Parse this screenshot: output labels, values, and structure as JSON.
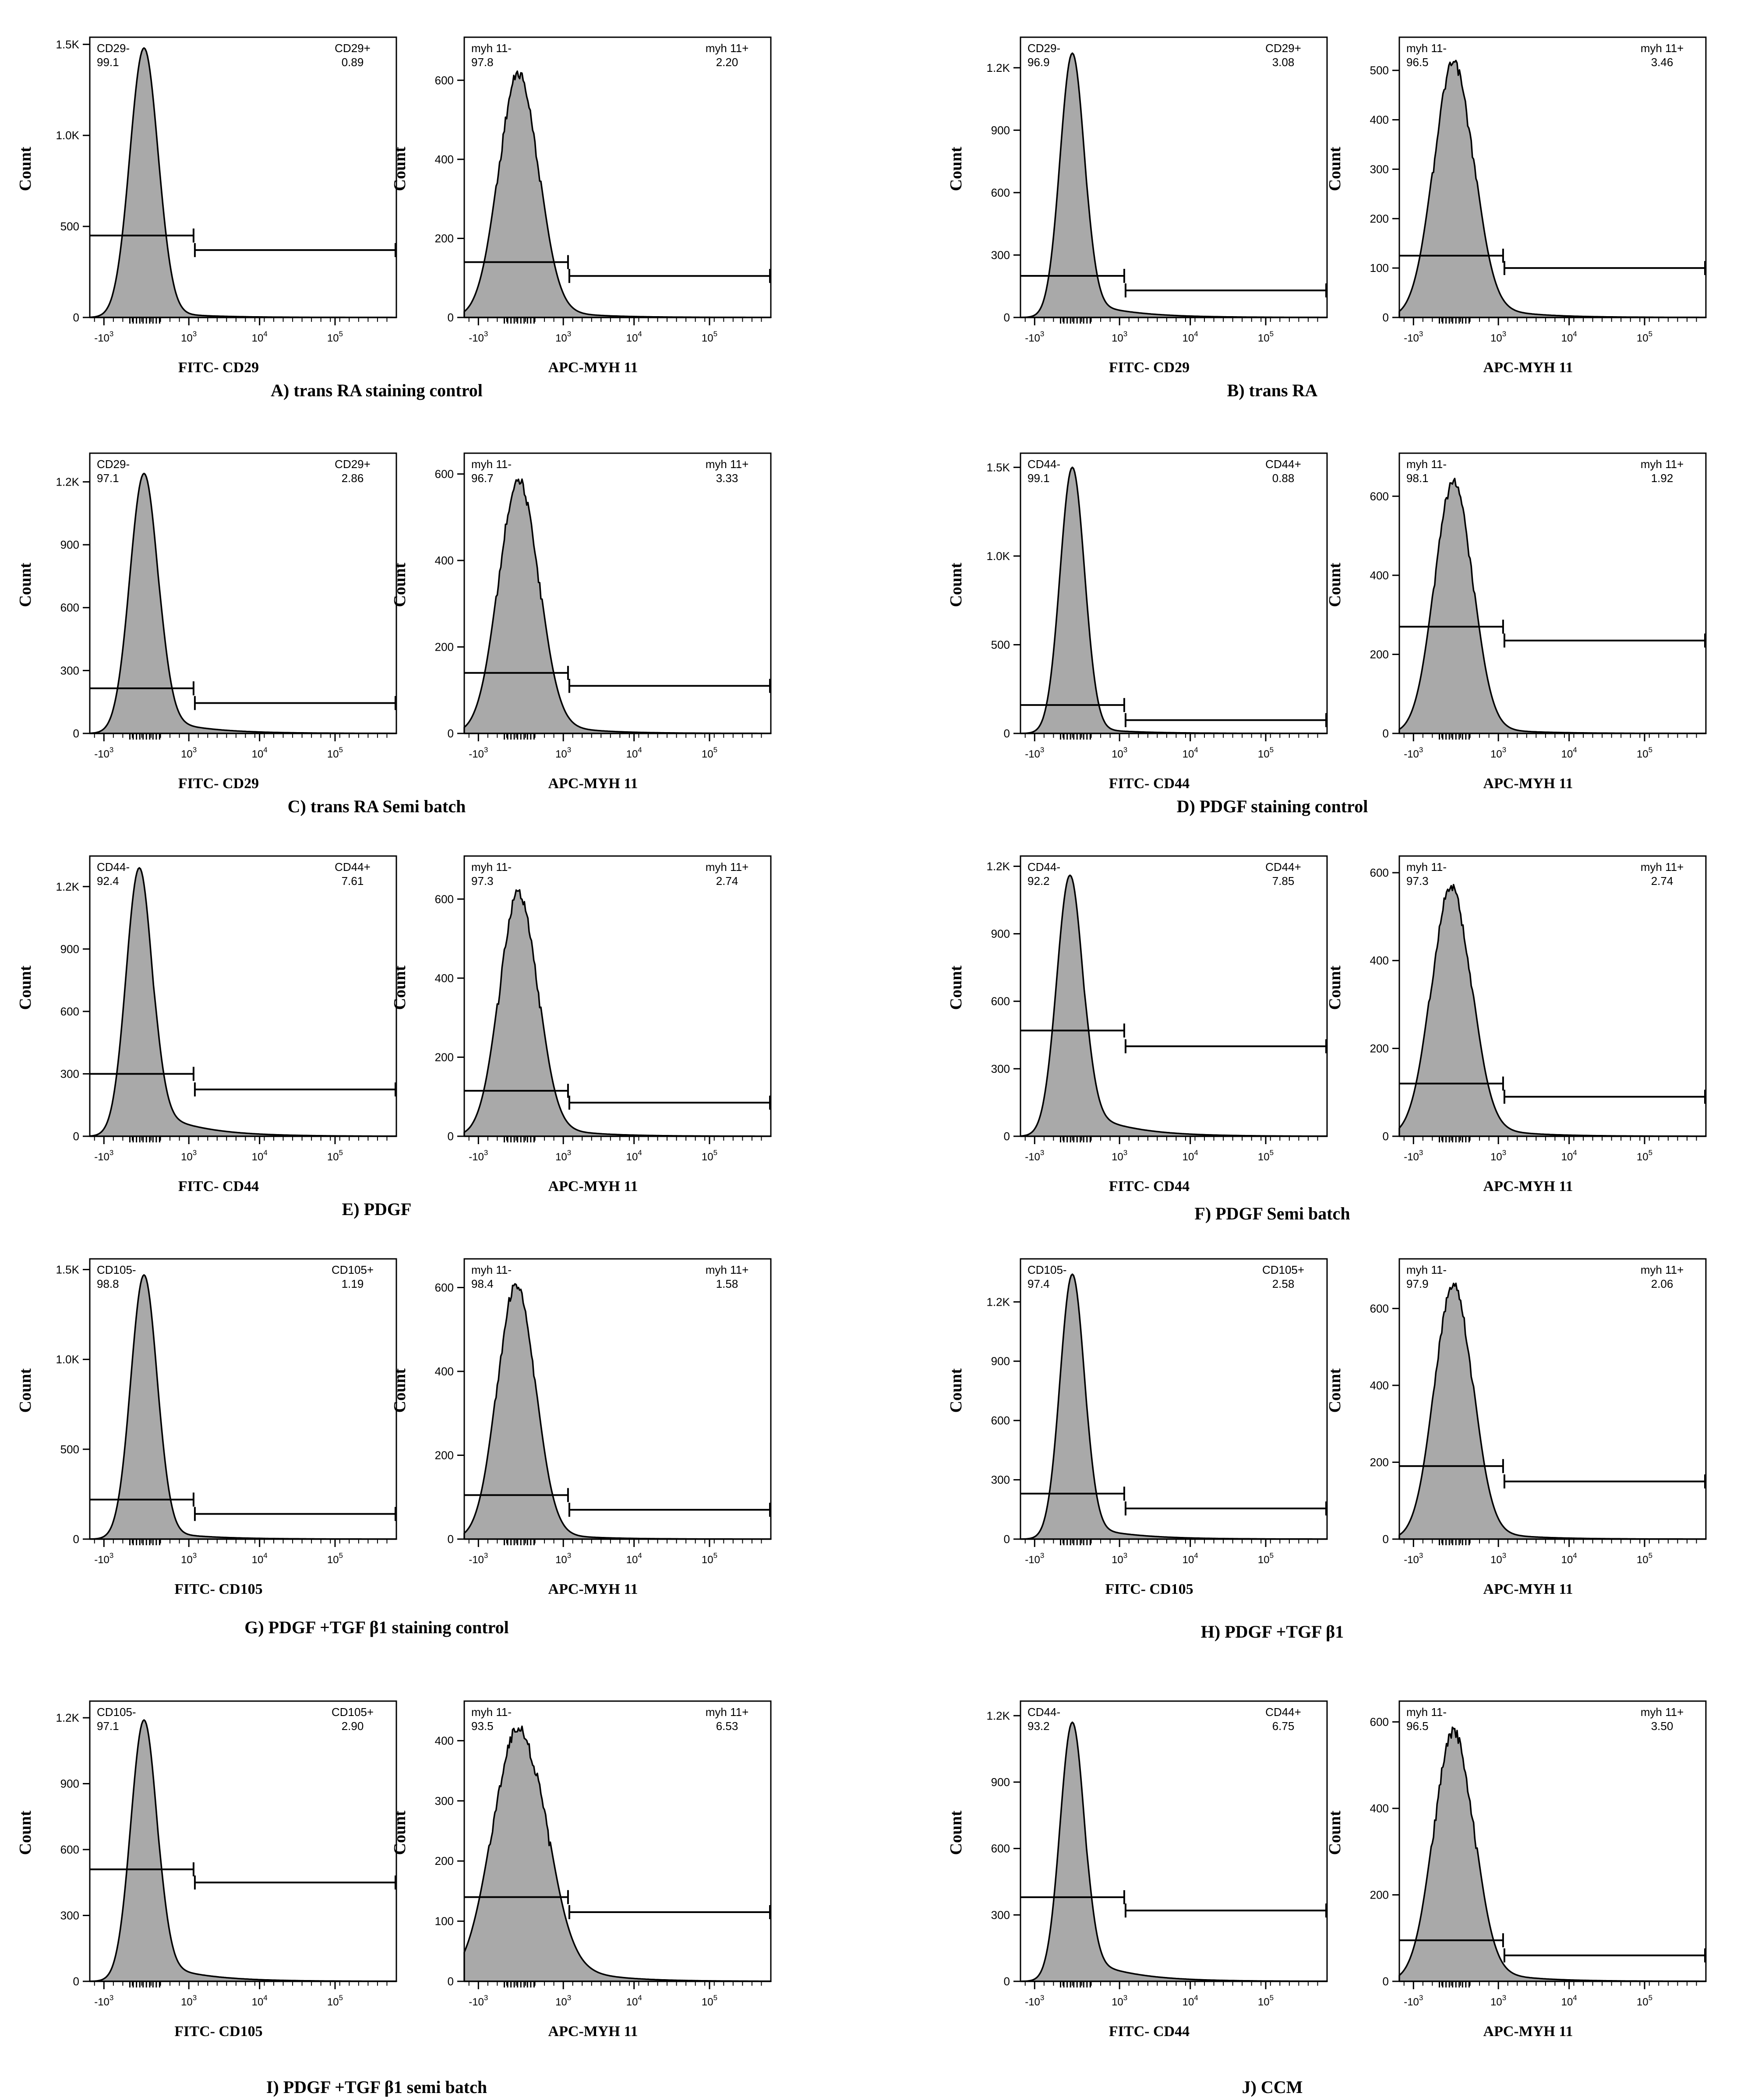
{
  "figure": {
    "panels": [
      {
        "id": "A",
        "caption": "A) trans RA staining control"
      },
      {
        "id": "B",
        "caption": "B) trans RA"
      },
      {
        "id": "C",
        "caption": "C) trans RA Semi batch"
      },
      {
        "id": "D",
        "caption": "D) PDGF staining control"
      },
      {
        "id": "E",
        "caption": "E) PDGF"
      },
      {
        "id": "F",
        "caption": "F) PDGF Semi batch"
      },
      {
        "id": "G",
        "caption": "G) PDGF +TGF β1 staining control"
      },
      {
        "id": "H",
        "caption": "H) PDGF +TGF β1"
      },
      {
        "id": "I",
        "caption": "I) PDGF +TGF β1 semi batch"
      },
      {
        "id": "J",
        "caption": "J) CCM"
      }
    ]
  },
  "chart_data": [
    {
      "type": "area",
      "panel": "A",
      "marker": "CD29",
      "xlabel": "FITC- CD29",
      "ylabel": "Count",
      "yticks": [
        "0",
        "500",
        "1.0K",
        "1.5K"
      ],
      "ytick_values": [
        0,
        500,
        1000,
        1500
      ],
      "ymax": 1520,
      "peak": 1480,
      "neg_label": "CD29-",
      "neg_value": "99.1",
      "pos_label": "CD29+",
      "pos_value": "0.89",
      "gate_y": [
        450,
        370
      ],
      "sigma": 0.3,
      "tail": 0.02,
      "mode": -0.05
    },
    {
      "type": "area",
      "panel": "A",
      "marker": "MYH 11",
      "xlabel": "APC-MYH 11",
      "ylabel": "Count",
      "yticks": [
        "0",
        "200",
        "400",
        "600"
      ],
      "ytick_values": [
        0,
        200,
        400,
        600
      ],
      "ymax": 700,
      "peak": 630,
      "neg_label": "myh 11-",
      "neg_value": "97.8",
      "pos_label": "myh 11+",
      "pos_value": "2.20",
      "gate_y": [
        140,
        105
      ],
      "sigma": 0.42,
      "tail": 0.04,
      "mode": -0.05,
      "noise": true
    },
    {
      "type": "area",
      "panel": "B",
      "marker": "CD29",
      "xlabel": "FITC- CD29",
      "ylabel": "Count",
      "yticks": [
        "0",
        "300",
        "600",
        "900",
        "1.2K"
      ],
      "ytick_values": [
        0,
        300,
        600,
        900,
        1200
      ],
      "ymax": 1330,
      "peak": 1270,
      "neg_label": "CD29-",
      "neg_value": "96.9",
      "pos_label": "CD29+",
      "pos_value": "3.08",
      "gate_y": [
        200,
        130
      ],
      "sigma": 0.26,
      "tail": 0.06,
      "mode": -0.1
    },
    {
      "type": "area",
      "panel": "B",
      "marker": "MYH 11",
      "xlabel": "APC-MYH 11",
      "ylabel": "Count",
      "yticks": [
        "0",
        "100",
        "200",
        "300",
        "400",
        "500"
      ],
      "ytick_values": [
        0,
        100,
        200,
        300,
        400,
        500
      ],
      "ymax": 560,
      "peak": 525,
      "neg_label": "myh 11-",
      "neg_value": "96.5",
      "pos_label": "myh 11+",
      "pos_value": "3.46",
      "gate_y": [
        125,
        100
      ],
      "sigma": 0.42,
      "tail": 0.06,
      "mode": -0.05,
      "noise": true
    },
    {
      "type": "area",
      "panel": "C",
      "marker": "CD29",
      "xlabel": "FITC- CD29",
      "ylabel": "Count",
      "yticks": [
        "0",
        "300",
        "600",
        "900",
        "1.2K"
      ],
      "ytick_values": [
        0,
        300,
        600,
        900,
        1200
      ],
      "ymax": 1320,
      "peak": 1240,
      "neg_label": "CD29-",
      "neg_value": "97.1",
      "pos_label": "CD29+",
      "pos_value": "2.86",
      "gate_y": [
        215,
        145
      ],
      "sigma": 0.3,
      "tail": 0.06,
      "mode": -0.05
    },
    {
      "type": "area",
      "panel": "C",
      "marker": "MYH 11",
      "xlabel": "APC-MYH 11",
      "ylabel": "Count",
      "yticks": [
        "0",
        "200",
        "400",
        "600"
      ],
      "ytick_values": [
        0,
        200,
        400,
        600
      ],
      "ymax": 640,
      "peak": 600,
      "neg_label": "myh 11-",
      "neg_value": "96.7",
      "pos_label": "myh 11+",
      "pos_value": "3.33",
      "gate_y": [
        140,
        110
      ],
      "sigma": 0.42,
      "tail": 0.05,
      "mode": -0.05,
      "noise": true
    },
    {
      "type": "area",
      "panel": "D",
      "marker": "CD44",
      "xlabel": "FITC- CD44",
      "ylabel": "Count",
      "yticks": [
        "0",
        "500",
        "1.0K",
        "1.5K"
      ],
      "ytick_values": [
        0,
        500,
        1000,
        1500
      ],
      "ymax": 1560,
      "peak": 1500,
      "neg_label": "CD44-",
      "neg_value": "99.1",
      "pos_label": "CD44+",
      "pos_value": "0.88",
      "gate_y": [
        160,
        75
      ],
      "sigma": 0.26,
      "tail": 0.02,
      "mode": -0.1
    },
    {
      "type": "area",
      "panel": "D",
      "marker": "MYH 11",
      "xlabel": "APC-MYH 11",
      "ylabel": "Count",
      "yticks": [
        "0",
        "200",
        "400",
        "600"
      ],
      "ytick_values": [
        0,
        200,
        400,
        600
      ],
      "ymax": 700,
      "peak": 650,
      "neg_label": "myh 11-",
      "neg_value": "98.1",
      "pos_label": "myh 11+",
      "pos_value": "1.92",
      "gate_y": [
        270,
        235
      ],
      "sigma": 0.4,
      "tail": 0.03,
      "mode": -0.05,
      "noise": true
    },
    {
      "type": "area",
      "panel": "E",
      "marker": "CD44",
      "xlabel": "FITC- CD44",
      "ylabel": "Count",
      "yticks": [
        "0",
        "300",
        "600",
        "900",
        "1.2K"
      ],
      "ytick_values": [
        0,
        300,
        600,
        900,
        1200
      ],
      "ymax": 1330,
      "peak": 1290,
      "neg_label": "CD44-",
      "neg_value": "92.4",
      "pos_label": "CD44+",
      "pos_value": "7.61",
      "gate_y": [
        300,
        225
      ],
      "sigma": 0.28,
      "tail": 0.1,
      "mode": -0.15
    },
    {
      "type": "area",
      "panel": "E",
      "marker": "MYH 11",
      "xlabel": "APC-MYH 11",
      "ylabel": "Count",
      "yticks": [
        "0",
        "200",
        "400",
        "600"
      ],
      "ytick_values": [
        0,
        200,
        400,
        600
      ],
      "ymax": 700,
      "peak": 630,
      "neg_label": "myh 11-",
      "neg_value": "97.3",
      "pos_label": "myh 11+",
      "pos_value": "2.74",
      "gate_y": [
        115,
        85
      ],
      "sigma": 0.4,
      "tail": 0.05,
      "mode": -0.05,
      "noise": true
    },
    {
      "type": "area",
      "panel": "F",
      "marker": "CD44",
      "xlabel": "FITC- CD44",
      "ylabel": "Count",
      "yticks": [
        "0",
        "300",
        "600",
        "900",
        "1.2K"
      ],
      "ytick_values": [
        0,
        300,
        600,
        900,
        1200
      ],
      "ymax": 1230,
      "peak": 1160,
      "neg_label": "CD44-",
      "neg_value": "92.2",
      "pos_label": "CD44+",
      "pos_value": "7.85",
      "gate_y": [
        470,
        400
      ],
      "sigma": 0.28,
      "tail": 0.1,
      "mode": -0.15
    },
    {
      "type": "area",
      "panel": "F",
      "marker": "MYH 11",
      "xlabel": "APC-MYH 11",
      "ylabel": "Count",
      "yticks": [
        "0",
        "200",
        "400",
        "600"
      ],
      "ytick_values": [
        0,
        200,
        400,
        600
      ],
      "ymax": 630,
      "peak": 580,
      "neg_label": "myh 11-",
      "neg_value": "97.3",
      "pos_label": "myh 11+",
      "pos_value": "2.74",
      "gate_y": [
        120,
        90
      ],
      "sigma": 0.42,
      "tail": 0.05,
      "mode": -0.1,
      "noise": true
    },
    {
      "type": "area",
      "panel": "G",
      "marker": "CD105",
      "xlabel": "FITC- CD105",
      "ylabel": "Count",
      "yticks": [
        "0",
        "500",
        "1.0K",
        "1.5K"
      ],
      "ytick_values": [
        0,
        500,
        1000,
        1500
      ],
      "ymax": 1540,
      "peak": 1470,
      "neg_label": "CD105-",
      "neg_value": "98.8",
      "pos_label": "CD105+",
      "pos_value": "1.19",
      "gate_y": [
        220,
        140
      ],
      "sigma": 0.28,
      "tail": 0.03,
      "mode": -0.05
    },
    {
      "type": "area",
      "panel": "G",
      "marker": "MYH 11",
      "xlabel": "APC-MYH 11",
      "ylabel": "Count",
      "yticks": [
        "0",
        "200",
        "400",
        "600"
      ],
      "ytick_values": [
        0,
        200,
        400,
        600
      ],
      "ymax": 660,
      "peak": 620,
      "neg_label": "myh 11-",
      "neg_value": "98.4",
      "pos_label": "myh 11+",
      "pos_value": "1.58",
      "gate_y": [
        105,
        70
      ],
      "sigma": 0.4,
      "tail": 0.03,
      "mode": -0.1,
      "noise": true
    },
    {
      "type": "area",
      "panel": "H",
      "marker": "CD105",
      "xlabel": "FITC- CD105",
      "ylabel": "Count",
      "yticks": [
        "0",
        "300",
        "600",
        "900",
        "1.2K"
      ],
      "ytick_values": [
        0,
        300,
        600,
        900,
        1200
      ],
      "ymax": 1400,
      "peak": 1340,
      "neg_label": "CD105-",
      "neg_value": "97.4",
      "pos_label": "CD105+",
      "pos_value": "2.58",
      "gate_y": [
        230,
        155
      ],
      "sigma": 0.26,
      "tail": 0.05,
      "mode": -0.1
    },
    {
      "type": "area",
      "panel": "H",
      "marker": "MYH 11",
      "xlabel": "APC-MYH 11",
      "ylabel": "Count",
      "yticks": [
        "0",
        "200",
        "400",
        "600"
      ],
      "ytick_values": [
        0,
        200,
        400,
        600
      ],
      "ymax": 720,
      "peak": 680,
      "neg_label": "myh 11-",
      "neg_value": "97.9",
      "pos_label": "myh 11+",
      "pos_value": "2.06",
      "gate_y": [
        190,
        150
      ],
      "sigma": 0.4,
      "tail": 0.04,
      "mode": -0.05,
      "noise": true
    },
    {
      "type": "area",
      "panel": "I",
      "marker": "CD105",
      "xlabel": "FITC- CD105",
      "ylabel": "Count",
      "yticks": [
        "0",
        "300",
        "600",
        "900",
        "1.2K"
      ],
      "ytick_values": [
        0,
        300,
        600,
        900,
        1200
      ],
      "ymax": 1260,
      "peak": 1190,
      "neg_label": "CD105-",
      "neg_value": "97.1",
      "pos_label": "CD105+",
      "pos_value": "2.90",
      "gate_y": [
        510,
        450
      ],
      "sigma": 0.28,
      "tail": 0.07,
      "mode": -0.05
    },
    {
      "type": "area",
      "panel": "I",
      "marker": "MYH 11",
      "xlabel": "APC-MYH 11",
      "ylabel": "Count",
      "yticks": [
        "0",
        "100",
        "200",
        "300",
        "400"
      ],
      "ytick_values": [
        0,
        100,
        200,
        300,
        400
      ],
      "ymax": 460,
      "peak": 430,
      "neg_label": "myh 11-",
      "neg_value": "93.5",
      "pos_label": "myh 11+",
      "pos_value": "6.53",
      "gate_y": [
        140,
        115
      ],
      "sigma": 0.55,
      "tail": 0.12,
      "mode": -0.05,
      "noise": true
    },
    {
      "type": "area",
      "panel": "J",
      "marker": "CD44",
      "xlabel": "FITC- CD44",
      "ylabel": "Count",
      "yticks": [
        "0",
        "300",
        "600",
        "900",
        "1.2K"
      ],
      "ytick_values": [
        0,
        300,
        600,
        900,
        1200
      ],
      "ymax": 1250,
      "peak": 1170,
      "neg_label": "CD44-",
      "neg_value": "93.2",
      "pos_label": "CD44+",
      "pos_value": "6.75",
      "gate_y": [
        380,
        320
      ],
      "sigma": 0.26,
      "tail": 0.09,
      "mode": -0.1
    },
    {
      "type": "area",
      "panel": "J",
      "marker": "MYH 11",
      "xlabel": "APC-MYH 11",
      "ylabel": "Count",
      "yticks": [
        "0",
        "200",
        "400",
        "600"
      ],
      "ytick_values": [
        0,
        200,
        400,
        600
      ],
      "ymax": 640,
      "peak": 590,
      "neg_label": "myh 11-",
      "neg_value": "96.5",
      "pos_label": "myh 11+",
      "pos_value": "3.50",
      "gate_y": [
        95,
        60
      ],
      "sigma": 0.42,
      "tail": 0.06,
      "mode": -0.05,
      "noise": true
    }
  ],
  "axis": {
    "x_decade_base": "10",
    "x_tick_exponents": [
      "3",
      "3",
      "4",
      "5"
    ],
    "x_tick_neg": [
      true,
      false,
      false,
      false
    ]
  },
  "colors": {
    "fill": "#a9a9a9",
    "stroke": "#000000",
    "axis": "#000000",
    "text": "#000000"
  }
}
